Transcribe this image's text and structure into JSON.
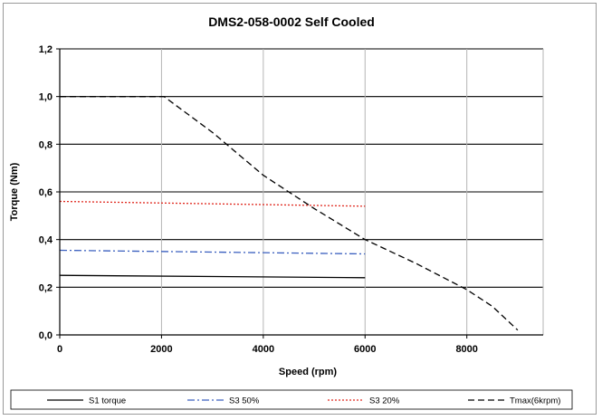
{
  "chart_data": {
    "type": "line",
    "title": "DMS2-058-0002 Self Cooled",
    "xlabel": "Speed (rpm)",
    "ylabel": "Torque (Nm)",
    "xlim": [
      0,
      9500
    ],
    "ylim": [
      0,
      1.2
    ],
    "x_ticks": [
      0,
      2000,
      4000,
      6000,
      8000
    ],
    "x_tick_labels": [
      "0",
      "2000",
      "4000",
      "6000",
      "8000"
    ],
    "y_ticks": [
      0,
      0.2,
      0.4,
      0.6,
      0.8,
      1.0,
      1.2
    ],
    "y_tick_labels": [
      "0,0",
      "0,2",
      "0,4",
      "0,6",
      "0,8",
      "1,0",
      "1,2"
    ],
    "grid": "both",
    "legend_position": "bottom",
    "series": [
      {
        "name": "S1 torque",
        "color": "#000000",
        "dash": "solid",
        "x": [
          0,
          6000
        ],
        "y": [
          0.25,
          0.24
        ]
      },
      {
        "name": "S3 50%",
        "color": "#3a5fbf",
        "dash": "dash-dot",
        "x": [
          0,
          6000
        ],
        "y": [
          0.355,
          0.34
        ]
      },
      {
        "name": "S3 20%",
        "color": "#e0281e",
        "dash": "dotted",
        "x": [
          0,
          6000
        ],
        "y": [
          0.56,
          0.54
        ]
      },
      {
        "name": "Tmax(6krpm)",
        "color": "#000000",
        "dash": "dashed",
        "x": [
          0,
          2050,
          3000,
          4000,
          5000,
          6000,
          7000,
          8000,
          8500,
          9000
        ],
        "y": [
          1.0,
          1.0,
          0.85,
          0.67,
          0.53,
          0.4,
          0.3,
          0.19,
          0.12,
          0.02
        ]
      }
    ]
  }
}
